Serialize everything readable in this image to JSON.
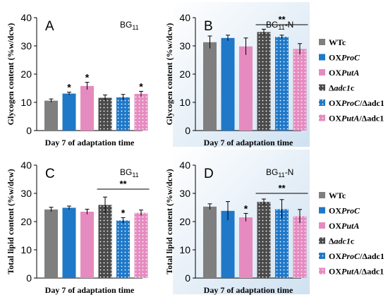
{
  "colors": {
    "WTc": "#7f7f7f",
    "OXProC": "#1f78c8",
    "OXPutA": "#e58bc0",
    "adc1c": "#4a4a4a",
    "OXProC_adc1": "#1f78c8",
    "OXPutA_adc1": "#e58bc0",
    "panel_bg_grad": "#cfe1f1"
  },
  "legend": [
    {
      "key": "WTc",
      "pre": "WTc",
      "it": "",
      "post": "",
      "pattern": false
    },
    {
      "key": "OXProC",
      "pre": "OX",
      "it": "ProC",
      "post": "",
      "pattern": false
    },
    {
      "key": "OXPutA",
      "pre": "OX",
      "it": "PutA",
      "post": "",
      "pattern": false
    },
    {
      "key": "adc1c",
      "pre": "Δ",
      "it": "adc1",
      "post": "c",
      "pattern": true
    },
    {
      "key": "OXProC_adc1",
      "pre": "OX",
      "it": "ProC",
      "post": "/Δadc1",
      "pattern": true
    },
    {
      "key": "OXPutA_adc1",
      "pre": "OX",
      "it": "PutA",
      "post": "/Δadc1",
      "pattern": true
    }
  ],
  "chart_data": [
    {
      "type": "bar",
      "panel": "A",
      "condition": "BG11",
      "ylabel": "Glycogen content (%w/dcw)",
      "xlabel": "Day 7 of adaptation time",
      "ylim": [
        0,
        40
      ],
      "yticks": [
        0,
        10,
        20,
        30,
        40
      ],
      "series": [
        {
          "name": "WTc",
          "value": 10.6,
          "error": 0.6,
          "mark": ""
        },
        {
          "name": "OXProC",
          "value": 13.1,
          "error": 0.5,
          "mark": "*"
        },
        {
          "name": "OXPutA",
          "value": 15.8,
          "error": 1.3,
          "mark": "*"
        },
        {
          "name": "Δadc1c",
          "value": 11.6,
          "error": 1.0,
          "mark": ""
        },
        {
          "name": "OXProC/Δadc1",
          "value": 11.8,
          "error": 1.0,
          "mark": ""
        },
        {
          "name": "OXPutA/Δadc1",
          "value": 13.0,
          "error": 0.9,
          "mark": "*"
        }
      ],
      "bracket": null
    },
    {
      "type": "bar",
      "panel": "B",
      "condition": "BG11-N",
      "ylabel": "Glycogen content (%w/dcw)",
      "xlabel": "Day 7 of adaptation time",
      "ylim": [
        0,
        40
      ],
      "yticks": [
        0,
        10,
        20,
        30,
        40
      ],
      "series": [
        {
          "name": "WTc",
          "value": 31.3,
          "error": 2.2,
          "mark": ""
        },
        {
          "name": "OXProC",
          "value": 32.8,
          "error": 1.0,
          "mark": ""
        },
        {
          "name": "OXPutA",
          "value": 29.8,
          "error": 3.0,
          "mark": ""
        },
        {
          "name": "Δadc1c",
          "value": 34.9,
          "error": 1.0,
          "mark": ""
        },
        {
          "name": "OXProC/Δadc1",
          "value": 33.2,
          "error": 0.6,
          "mark": ""
        },
        {
          "name": "OXPutA/Δadc1",
          "value": 28.9,
          "error": 1.9,
          "mark": ""
        }
      ],
      "bracket": {
        "label": "**",
        "y": 37.5
      }
    },
    {
      "type": "bar",
      "panel": "C",
      "condition": "BG11",
      "ylabel": "Total lipid content (%w/dcw)",
      "xlabel": "Day 7 of adaptation time",
      "ylim": [
        0,
        40
      ],
      "yticks": [
        0,
        10,
        20,
        30,
        40
      ],
      "series": [
        {
          "name": "WTc",
          "value": 24.3,
          "error": 0.8,
          "mark": ""
        },
        {
          "name": "OXProC",
          "value": 24.9,
          "error": 0.6,
          "mark": ""
        },
        {
          "name": "OXPutA",
          "value": 23.5,
          "error": 0.9,
          "mark": ""
        },
        {
          "name": "Δadc1c",
          "value": 25.9,
          "error": 2.8,
          "mark": ""
        },
        {
          "name": "OXProC/Δadc1",
          "value": 20.4,
          "error": 1.0,
          "mark": "*"
        },
        {
          "name": "OXPutA/Δadc1",
          "value": 23.1,
          "error": 1.0,
          "mark": ""
        }
      ],
      "bracket": {
        "label": "**",
        "y": 31.5
      }
    },
    {
      "type": "bar",
      "panel": "D",
      "condition": "BG11-N",
      "ylabel": "Total lipid content (%w/dcw)",
      "xlabel": "Day 7 of adaptation time",
      "ylim": [
        0,
        40
      ],
      "yticks": [
        0,
        10,
        20,
        30,
        40
      ],
      "series": [
        {
          "name": "WTc",
          "value": 25.3,
          "error": 1.0,
          "mark": ""
        },
        {
          "name": "OXProC",
          "value": 23.8,
          "error": 3.3,
          "mark": ""
        },
        {
          "name": "OXPutA",
          "value": 21.5,
          "error": 1.4,
          "mark": "*"
        },
        {
          "name": "Δadc1c",
          "value": 27.0,
          "error": 1.0,
          "mark": ""
        },
        {
          "name": "OXProC/Δadc1",
          "value": 24.4,
          "error": 3.4,
          "mark": ""
        },
        {
          "name": "OXPutA/Δadc1",
          "value": 21.9,
          "error": 2.4,
          "mark": ""
        }
      ],
      "bracket": {
        "label": "**",
        "y": 30
      }
    }
  ]
}
